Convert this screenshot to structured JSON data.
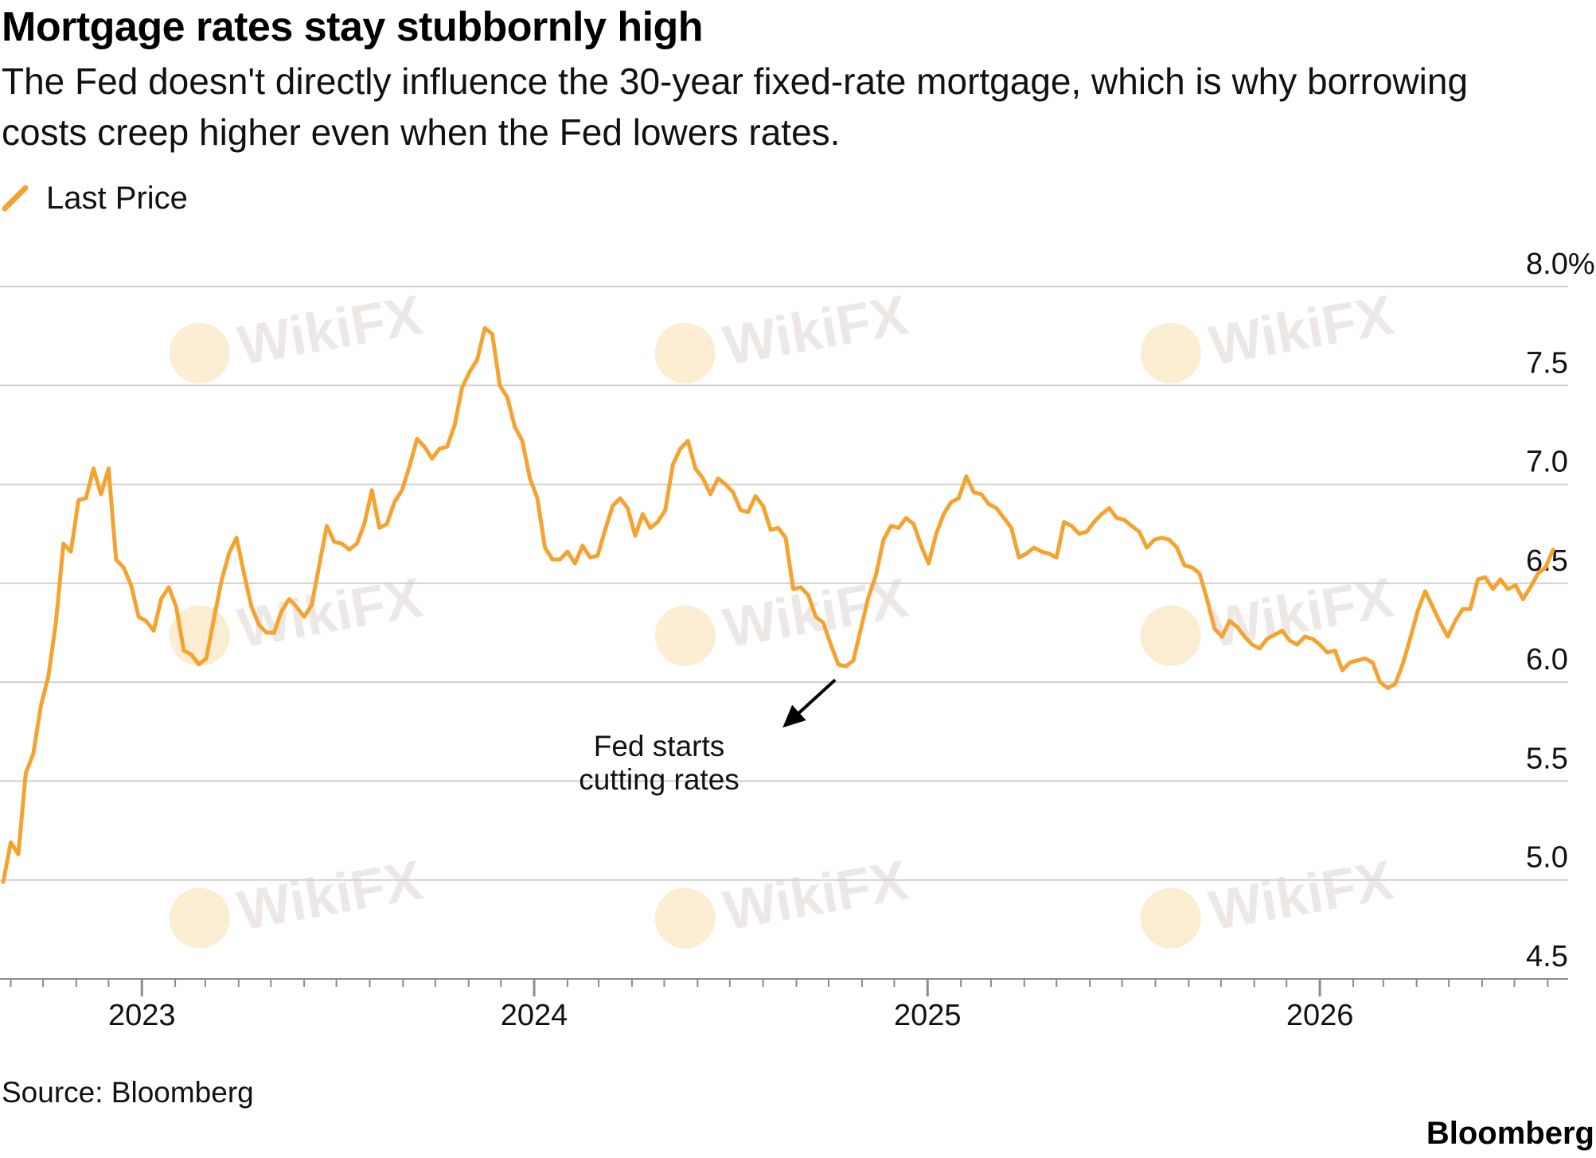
{
  "chart_data": {
    "type": "line",
    "title": "Mortgage rates stay stubbornly high",
    "subtitle": "The Fed doesn't directly influence the 30-year fixed-rate mortgage, which is why borrowing costs creep higher even when the Fed lowers rates.",
    "series": [
      {
        "name": "Last Price",
        "color": "#f5a330",
        "points": [
          [
            "2022-08-25",
            4.99
          ],
          [
            "2022-09-01",
            5.19
          ],
          [
            "2022-09-08",
            5.13
          ],
          [
            "2022-09-15",
            5.54
          ],
          [
            "2022-09-22",
            5.64
          ],
          [
            "2022-09-29",
            5.88
          ],
          [
            "2022-10-06",
            6.03
          ],
          [
            "2022-10-13",
            6.3
          ],
          [
            "2022-10-20",
            6.7
          ],
          [
            "2022-10-27",
            6.66
          ],
          [
            "2022-11-03",
            6.92
          ],
          [
            "2022-11-10",
            6.93
          ],
          [
            "2022-11-17",
            7.08
          ],
          [
            "2022-11-24",
            6.95
          ],
          [
            "2022-12-01",
            7.08
          ],
          [
            "2022-12-08",
            6.62
          ],
          [
            "2022-12-15",
            6.58
          ],
          [
            "2022-12-22",
            6.49
          ],
          [
            "2022-12-29",
            6.33
          ],
          [
            "2023-01-05",
            6.31
          ],
          [
            "2023-01-12",
            6.26
          ],
          [
            "2023-01-19",
            6.42
          ],
          [
            "2023-01-26",
            6.48
          ],
          [
            "2023-02-02",
            6.38
          ],
          [
            "2023-02-09",
            6.16
          ],
          [
            "2023-02-16",
            6.14
          ],
          [
            "2023-02-23",
            6.09
          ],
          [
            "2023-03-02",
            6.12
          ],
          [
            "2023-03-09",
            6.32
          ],
          [
            "2023-03-16",
            6.51
          ],
          [
            "2023-03-23",
            6.65
          ],
          [
            "2023-03-30",
            6.73
          ],
          [
            "2023-04-06",
            6.55
          ],
          [
            "2023-04-13",
            6.38
          ],
          [
            "2023-04-20",
            6.29
          ],
          [
            "2023-04-27",
            6.25
          ],
          [
            "2023-05-04",
            6.25
          ],
          [
            "2023-05-11",
            6.36
          ],
          [
            "2023-05-18",
            6.42
          ],
          [
            "2023-05-25",
            6.38
          ],
          [
            "2023-06-01",
            6.33
          ],
          [
            "2023-06-08",
            6.39
          ],
          [
            "2023-06-15",
            6.59
          ],
          [
            "2023-06-22",
            6.79
          ],
          [
            "2023-06-29",
            6.71
          ],
          [
            "2023-07-06",
            6.7
          ],
          [
            "2023-07-13",
            6.67
          ],
          [
            "2023-07-20",
            6.7
          ],
          [
            "2023-07-27",
            6.8
          ],
          [
            "2023-08-03",
            6.97
          ],
          [
            "2023-08-10",
            6.78
          ],
          [
            "2023-08-17",
            6.8
          ],
          [
            "2023-08-24",
            6.91
          ],
          [
            "2023-08-31",
            6.97
          ],
          [
            "2023-09-07",
            7.09
          ],
          [
            "2023-09-14",
            7.23
          ],
          [
            "2023-09-21",
            7.19
          ],
          [
            "2023-09-28",
            7.13
          ],
          [
            "2023-10-05",
            7.18
          ],
          [
            "2023-10-12",
            7.19
          ],
          [
            "2023-10-19",
            7.3
          ],
          [
            "2023-10-26",
            7.49
          ],
          [
            "2023-11-02",
            7.57
          ],
          [
            "2023-11-09",
            7.63
          ],
          [
            "2023-11-16",
            7.79
          ],
          [
            "2023-11-23",
            7.76
          ],
          [
            "2023-11-30",
            7.5
          ],
          [
            "2023-12-07",
            7.44
          ],
          [
            "2023-12-14",
            7.29
          ],
          [
            "2023-12-21",
            7.22
          ],
          [
            "2023-12-28",
            7.03
          ],
          [
            "2024-01-04",
            6.93
          ],
          [
            "2024-01-11",
            6.68
          ],
          [
            "2024-01-18",
            6.62
          ],
          [
            "2024-01-25",
            6.62
          ],
          [
            "2024-02-01",
            6.66
          ],
          [
            "2024-02-08",
            6.6
          ],
          [
            "2024-02-15",
            6.69
          ],
          [
            "2024-02-22",
            6.63
          ],
          [
            "2024-02-29",
            6.64
          ],
          [
            "2024-03-07",
            6.77
          ],
          [
            "2024-03-14",
            6.89
          ],
          [
            "2024-03-21",
            6.93
          ],
          [
            "2024-03-28",
            6.88
          ],
          [
            "2024-04-04",
            6.74
          ],
          [
            "2024-04-11",
            6.85
          ],
          [
            "2024-04-18",
            6.78
          ],
          [
            "2024-04-25",
            6.81
          ],
          [
            "2024-05-02",
            6.87
          ],
          [
            "2024-05-09",
            7.1
          ],
          [
            "2024-05-16",
            7.18
          ],
          [
            "2024-05-23",
            7.22
          ],
          [
            "2024-05-30",
            7.08
          ],
          [
            "2024-06-06",
            7.03
          ],
          [
            "2024-06-13",
            6.95
          ],
          [
            "2024-06-20",
            7.03
          ],
          [
            "2024-06-27",
            7.0
          ],
          [
            "2024-07-04",
            6.96
          ],
          [
            "2024-07-11",
            6.87
          ],
          [
            "2024-07-18",
            6.86
          ],
          [
            "2024-07-25",
            6.94
          ],
          [
            "2024-08-01",
            6.89
          ],
          [
            "2024-08-08",
            6.77
          ],
          [
            "2024-08-15",
            6.78
          ],
          [
            "2024-08-22",
            6.73
          ],
          [
            "2024-08-29",
            6.47
          ],
          [
            "2024-09-05",
            6.48
          ],
          [
            "2024-09-12",
            6.44
          ],
          [
            "2024-09-19",
            6.33
          ],
          [
            "2024-09-26",
            6.3
          ],
          [
            "2024-10-03",
            6.19
          ],
          [
            "2024-10-10",
            6.09
          ],
          [
            "2024-10-17",
            6.08
          ],
          [
            "2024-10-24",
            6.11
          ],
          [
            "2024-10-31",
            6.27
          ],
          [
            "2024-11-07",
            6.43
          ],
          [
            "2024-11-14",
            6.54
          ],
          [
            "2024-11-21",
            6.72
          ],
          [
            "2024-11-28",
            6.79
          ],
          [
            "2024-12-05",
            6.78
          ],
          [
            "2024-12-12",
            6.83
          ],
          [
            "2024-12-19",
            6.8
          ],
          [
            "2024-12-26",
            6.69
          ],
          [
            "2025-01-02",
            6.6
          ],
          [
            "2025-01-09",
            6.75
          ],
          [
            "2025-01-16",
            6.85
          ],
          [
            "2025-01-23",
            6.91
          ],
          [
            "2025-01-30",
            6.93
          ],
          [
            "2025-02-06",
            7.04
          ],
          [
            "2025-02-13",
            6.96
          ],
          [
            "2025-02-20",
            6.95
          ],
          [
            "2025-02-27",
            6.9
          ],
          [
            "2025-03-06",
            6.88
          ],
          [
            "2025-03-13",
            6.83
          ],
          [
            "2025-03-20",
            6.78
          ],
          [
            "2025-03-27",
            6.63
          ],
          [
            "2025-04-03",
            6.65
          ],
          [
            "2025-04-10",
            6.68
          ],
          [
            "2025-04-17",
            6.66
          ],
          [
            "2025-04-24",
            6.65
          ],
          [
            "2025-05-01",
            6.63
          ],
          [
            "2025-05-08",
            6.81
          ],
          [
            "2025-05-15",
            6.79
          ],
          [
            "2025-05-22",
            6.75
          ],
          [
            "2025-05-29",
            6.76
          ],
          [
            "2025-06-05",
            6.81
          ],
          [
            "2025-06-12",
            6.85
          ],
          [
            "2025-06-19",
            6.88
          ],
          [
            "2025-06-26",
            6.83
          ],
          [
            "2025-07-03",
            6.82
          ],
          [
            "2025-07-10",
            6.79
          ],
          [
            "2025-07-17",
            6.76
          ],
          [
            "2025-07-24",
            6.68
          ],
          [
            "2025-07-31",
            6.72
          ],
          [
            "2025-08-07",
            6.73
          ],
          [
            "2025-08-14",
            6.72
          ],
          [
            "2025-08-21",
            6.68
          ],
          [
            "2025-08-28",
            6.59
          ],
          [
            "2025-09-04",
            6.58
          ],
          [
            "2025-09-11",
            6.55
          ],
          [
            "2025-09-18",
            6.42
          ],
          [
            "2025-09-25",
            6.27
          ],
          [
            "2025-10-02",
            6.23
          ],
          [
            "2025-10-09",
            6.31
          ],
          [
            "2025-10-16",
            6.28
          ],
          [
            "2025-10-23",
            6.23
          ],
          [
            "2025-10-30",
            6.19
          ],
          [
            "2025-11-06",
            6.17
          ],
          [
            "2025-11-13",
            6.22
          ],
          [
            "2025-11-20",
            6.24
          ],
          [
            "2025-11-27",
            6.26
          ],
          [
            "2025-12-04",
            6.21
          ],
          [
            "2025-12-11",
            6.19
          ],
          [
            "2025-12-18",
            6.23
          ],
          [
            "2025-12-25",
            6.22
          ],
          [
            "2026-01-01",
            6.19
          ],
          [
            "2026-01-08",
            6.15
          ],
          [
            "2026-01-15",
            6.16
          ],
          [
            "2026-01-22",
            6.06
          ],
          [
            "2026-01-29",
            6.1
          ],
          [
            "2026-02-05",
            6.11
          ],
          [
            "2026-02-12",
            6.12
          ],
          [
            "2026-02-19",
            6.1
          ],
          [
            "2026-02-26",
            6.0
          ],
          [
            "2026-03-05",
            5.97
          ],
          [
            "2026-03-12",
            5.99
          ],
          [
            "2026-03-19",
            6.09
          ],
          [
            "2026-03-26",
            6.22
          ],
          [
            "2026-04-02",
            6.36
          ],
          [
            "2026-04-09",
            6.46
          ],
          [
            "2026-04-16",
            6.38
          ],
          [
            "2026-04-23",
            6.3
          ],
          [
            "2026-04-30",
            6.23
          ],
          [
            "2026-05-07",
            6.31
          ],
          [
            "2026-05-14",
            6.37
          ],
          [
            "2026-05-21",
            6.37
          ],
          [
            "2026-05-28",
            6.52
          ],
          [
            "2026-06-04",
            6.53
          ],
          [
            "2026-06-11",
            6.47
          ],
          [
            "2026-06-18",
            6.52
          ],
          [
            "2026-06-25",
            6.47
          ],
          [
            "2026-07-02",
            6.49
          ],
          [
            "2026-07-09",
            6.42
          ],
          [
            "2026-07-16",
            6.48
          ],
          [
            "2026-07-23",
            6.55
          ],
          [
            "2026-07-30",
            6.58
          ],
          [
            "2026-08-06",
            6.67
          ]
        ]
      }
    ],
    "x_range": [
      "2022-08-22",
      "2026-08-20"
    ],
    "x_ticks": [
      {
        "date": "2023-01-01",
        "label": "2023"
      },
      {
        "date": "2024-01-01",
        "label": "2024"
      },
      {
        "date": "2025-01-01",
        "label": "2025"
      },
      {
        "date": "2026-01-01",
        "label": "2026"
      }
    ],
    "ylim": [
      4.5,
      8.0
    ],
    "y_ticks": [
      {
        "value": 8.0,
        "label": "8.0%"
      },
      {
        "value": 7.5,
        "label": "7.5"
      },
      {
        "value": 7.0,
        "label": "7.0"
      },
      {
        "value": 6.5,
        "label": "6.5"
      },
      {
        "value": 6.0,
        "label": "6.0"
      },
      {
        "value": 5.5,
        "label": "5.5"
      },
      {
        "value": 5.0,
        "label": "5.0"
      },
      {
        "value": 4.5,
        "label": "4.5"
      }
    ],
    "y_axis_side": "right",
    "grid": true,
    "legend_position": "top-left",
    "annotations": [
      {
        "text_lines": [
          "Fed starts",
          "cutting rates"
        ],
        "target_date": "2024-10-10",
        "target_value": 6.06
      }
    ]
  },
  "source_note": "Source: Bloomberg",
  "brand": "Bloomberg",
  "watermark_text": "WikiFX",
  "colors": {
    "line": "#f5a330",
    "grid": "#d0d0d0",
    "axis": "#8c8c8c",
    "text": "#111111"
  }
}
